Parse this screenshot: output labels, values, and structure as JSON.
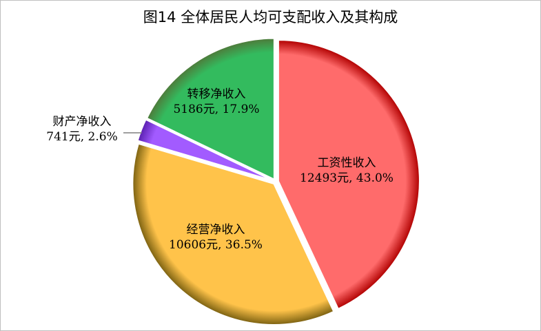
{
  "chart_data": {
    "type": "pie",
    "title": "图14 全体居民人均可支配收入及其构成",
    "slices": [
      {
        "label": "工资性收入",
        "value": 12493,
        "value_text": "12493元, 43.0%",
        "percent": 43.0,
        "color": "#FF6B6B",
        "edge_color": "#B00000"
      },
      {
        "label": "经营净收入",
        "value": 10606,
        "value_text": "10606元, 36.5%",
        "percent": 36.5,
        "color": "#FFC34A",
        "edge_color": "#7A6010"
      },
      {
        "label": "财产净收入",
        "value": 741,
        "value_text": "741元, 2.6%",
        "percent": 2.6,
        "color": "#A25BFF",
        "edge_color": "#5A1FB0"
      },
      {
        "label": "转移净收入",
        "value": 5186,
        "value_text": "5186元, 17.9%",
        "percent": 17.9,
        "color": "#33BB5E",
        "edge_color": "#4E7A3A"
      }
    ],
    "start_angle": "12 o'clock",
    "direction": "clockwise",
    "legend": "none"
  }
}
